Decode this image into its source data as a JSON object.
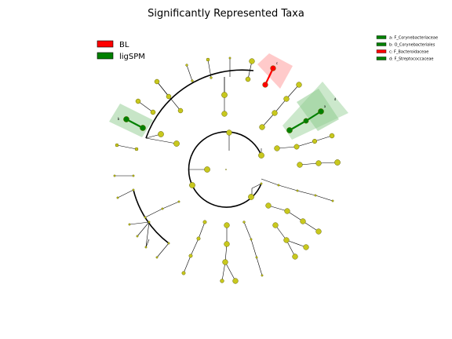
{
  "title": "Significantly Represented Taxa",
  "groups": [
    {
      "name": "BL",
      "color": "#ff0000"
    },
    {
      "name": "ligSPM",
      "color": "#008000"
    }
  ],
  "biomarkers": [
    {
      "letter": "a",
      "label": "a: F_Corynebacteriaceae",
      "group": "ligSPM"
    },
    {
      "letter": "b",
      "label": "b: O_Corynebacteriales",
      "group": "ligSPM"
    },
    {
      "letter": "c",
      "label": "c: F_Bacteroidaceae",
      "group": "BL"
    },
    {
      "letter": "d",
      "label": "d: F_Streptococcaceae",
      "group": "ligSPM"
    }
  ],
  "colors": {
    "node_default": "#c8c81e",
    "node_edge": "#666600",
    "BL": "#ff0000",
    "ligSPM": "#008000",
    "BL_shade": "#ffb3b3",
    "ligSPM_shade": "#8fcc8f"
  }
}
